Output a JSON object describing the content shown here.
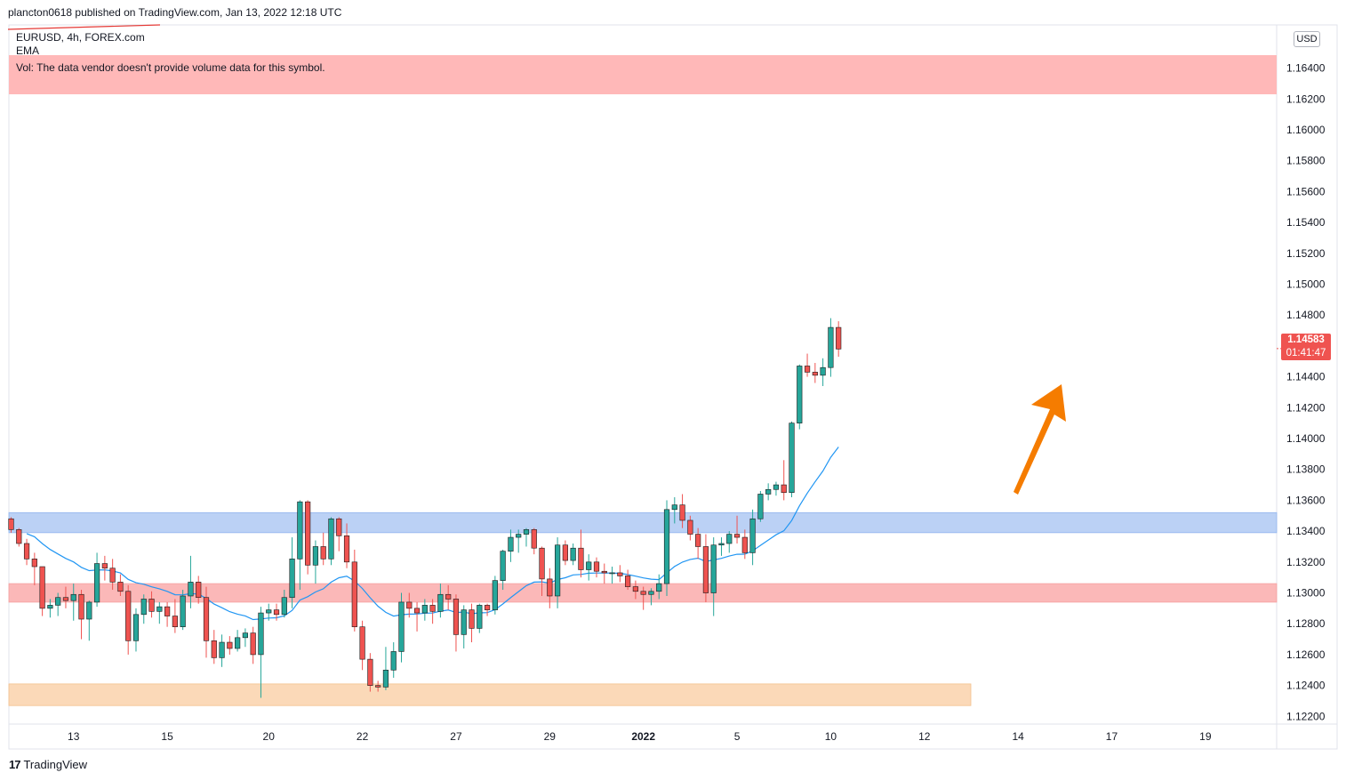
{
  "header": {
    "published": "plancton0618 published on TradingView.com, Jan 13, 2022 12:18 UTC"
  },
  "legend": {
    "symbol": "EURUSD, 4h, FOREX.com",
    "indicator": "EMA",
    "vol_note": "Vol: The data vendor doesn't provide volume data for this symbol."
  },
  "price_badge": {
    "price": "1.14583",
    "countdown": "01:41:47"
  },
  "currency_tag": "USD",
  "footer": {
    "logo_glyph": "17",
    "brand": "TradingView"
  },
  "colors": {
    "up": "#26a69a",
    "down": "#ef5350",
    "ema": "#2196f3",
    "arrow": "#f57c00",
    "blue_zone": "#bbd1f5",
    "red_zone": "#fbb8b8",
    "orange_zone": "#fbd9b8",
    "vol_band": "#ffb8b8"
  },
  "chart_data": {
    "type": "candlestick",
    "symbol": "EURUSD",
    "timeframe": "4h",
    "y_ticks": [
      "1.12200",
      "1.12400",
      "1.12600",
      "1.12800",
      "1.13000",
      "1.13200",
      "1.13400",
      "1.13600",
      "1.13800",
      "1.14000",
      "1.14200",
      "1.14400",
      "1.14800",
      "1.15000",
      "1.15200",
      "1.15400",
      "1.15600",
      "1.15800",
      "1.16000",
      "1.16200",
      "1.16400"
    ],
    "ylim": [
      1.1215,
      1.1668
    ],
    "x_ticks": [
      {
        "label": "13",
        "bar": 8
      },
      {
        "label": "15",
        "bar": 20
      },
      {
        "label": "20",
        "bar": 33
      },
      {
        "label": "22",
        "bar": 45
      },
      {
        "label": "27",
        "bar": 57
      },
      {
        "label": "29",
        "bar": 69
      },
      {
        "label": "2022",
        "bar": 81
      },
      {
        "label": "5",
        "bar": 93
      },
      {
        "label": "10",
        "bar": 105
      },
      {
        "label": "12",
        "bar": 117
      },
      {
        "label": "14",
        "bar": 129
      },
      {
        "label": "17",
        "bar": 141
      },
      {
        "label": "19",
        "bar": 153
      }
    ],
    "last_price": 1.14583,
    "zones": [
      {
        "name": "resistance",
        "from": 1.1339,
        "to": 1.1352
      },
      {
        "name": "support",
        "from": 1.1294,
        "to": 1.1306
      },
      {
        "name": "lower-support",
        "from": 1.1227,
        "to": 1.1241
      }
    ],
    "candles": [
      [
        1.1348,
        1.1349,
        1.1339,
        1.1341
      ],
      [
        1.1341,
        1.1342,
        1.133,
        1.1332
      ],
      [
        1.1332,
        1.1335,
        1.1318,
        1.1322
      ],
      [
        1.1322,
        1.1326,
        1.1305,
        1.1317
      ],
      [
        1.1317,
        1.1317,
        1.1285,
        1.129
      ],
      [
        1.129,
        1.1296,
        1.1284,
        1.1292
      ],
      [
        1.1292,
        1.13,
        1.1285,
        1.1297
      ],
      [
        1.1297,
        1.1304,
        1.129,
        1.1295
      ],
      [
        1.1295,
        1.1306,
        1.1282,
        1.1299
      ],
      [
        1.1299,
        1.1302,
        1.127,
        1.1283
      ],
      [
        1.1283,
        1.1295,
        1.1269,
        1.1294
      ],
      [
        1.1294,
        1.1326,
        1.1291,
        1.1319
      ],
      [
        1.1319,
        1.1324,
        1.1308,
        1.1316
      ],
      [
        1.1316,
        1.1322,
        1.1302,
        1.1307
      ],
      [
        1.1307,
        1.1312,
        1.1298,
        1.1301
      ],
      [
        1.1301,
        1.1305,
        1.126,
        1.1269
      ],
      [
        1.1269,
        1.129,
        1.1262,
        1.1286
      ],
      [
        1.1286,
        1.1299,
        1.128,
        1.1296
      ],
      [
        1.1296,
        1.1301,
        1.1284,
        1.1288
      ],
      [
        1.1288,
        1.1294,
        1.128,
        1.1291
      ],
      [
        1.1291,
        1.1294,
        1.1278,
        1.1285
      ],
      [
        1.1285,
        1.1296,
        1.1274,
        1.1278
      ],
      [
        1.1278,
        1.1302,
        1.1276,
        1.1298
      ],
      [
        1.1298,
        1.1324,
        1.129,
        1.1307
      ],
      [
        1.1307,
        1.1311,
        1.1293,
        1.1297
      ],
      [
        1.1297,
        1.1304,
        1.1258,
        1.1269
      ],
      [
        1.1269,
        1.1276,
        1.1254,
        1.1258
      ],
      [
        1.1258,
        1.1273,
        1.1252,
        1.1268
      ],
      [
        1.1268,
        1.1272,
        1.126,
        1.1264
      ],
      [
        1.1264,
        1.1276,
        1.1262,
        1.1271
      ],
      [
        1.1271,
        1.1277,
        1.1265,
        1.1274
      ],
      [
        1.1274,
        1.1278,
        1.1254,
        1.126
      ],
      [
        1.126,
        1.1291,
        1.1232,
        1.1287
      ],
      [
        1.1287,
        1.1293,
        1.1282,
        1.1289
      ],
      [
        1.1289,
        1.1293,
        1.1282,
        1.1286
      ],
      [
        1.1286,
        1.1302,
        1.1284,
        1.1297
      ],
      [
        1.1297,
        1.1336,
        1.129,
        1.1322
      ],
      [
        1.1322,
        1.136,
        1.1302,
        1.1359
      ],
      [
        1.1359,
        1.136,
        1.1312,
        1.1318
      ],
      [
        1.1318,
        1.1334,
        1.1306,
        1.133
      ],
      [
        1.133,
        1.1339,
        1.1318,
        1.1322
      ],
      [
        1.1322,
        1.1349,
        1.1318,
        1.1348
      ],
      [
        1.1348,
        1.1349,
        1.1327,
        1.1337
      ],
      [
        1.1337,
        1.1345,
        1.1316,
        1.132
      ],
      [
        1.132,
        1.1328,
        1.1275,
        1.1278
      ]
    ],
    "candles_2": [
      [
        1.1278,
        1.1282,
        1.125,
        1.1257
      ],
      [
        1.1257,
        1.1261,
        1.1236,
        1.124
      ],
      [
        1.124,
        1.1243,
        1.1236,
        1.1239
      ],
      [
        1.1239,
        1.1265,
        1.1237,
        1.125
      ],
      [
        1.125,
        1.1268,
        1.1245,
        1.1262
      ],
      [
        1.1262,
        1.13,
        1.1255,
        1.1294
      ],
      [
        1.1294,
        1.13,
        1.1284,
        1.129
      ],
      [
        1.129,
        1.1294,
        1.1275,
        1.1287
      ],
      [
        1.1287,
        1.1296,
        1.1282,
        1.1292
      ],
      [
        1.1292,
        1.1296,
        1.128,
        1.1288
      ],
      [
        1.1288,
        1.1306,
        1.1284,
        1.1299
      ],
      [
        1.1299,
        1.1305,
        1.1289,
        1.1296
      ],
      [
        1.1296,
        1.1299,
        1.1262,
        1.1273
      ],
      [
        1.1273,
        1.1292,
        1.1264,
        1.1289
      ],
      [
        1.1289,
        1.1293,
        1.1268,
        1.1277
      ],
      [
        1.1277,
        1.1293,
        1.1274,
        1.1292
      ],
      [
        1.1292,
        1.1293,
        1.1285,
        1.1289
      ],
      [
        1.1289,
        1.1311,
        1.1286,
        1.1308
      ],
      [
        1.1308,
        1.1328,
        1.1302,
        1.1327
      ],
      [
        1.1327,
        1.1341,
        1.132,
        1.1336
      ],
      [
        1.1336,
        1.1341,
        1.1326,
        1.1338
      ],
      [
        1.1338,
        1.1342,
        1.133,
        1.1341
      ],
      [
        1.1341,
        1.1342,
        1.1325,
        1.1329
      ],
      [
        1.1329,
        1.133,
        1.1298,
        1.1309
      ],
      [
        1.1309,
        1.1316,
        1.129,
        1.1298
      ],
      [
        1.1298,
        1.1336,
        1.129,
        1.1331
      ],
      [
        1.1331,
        1.1334,
        1.1318,
        1.1321
      ],
      [
        1.1321,
        1.1332,
        1.1318,
        1.1329
      ],
      [
        1.1329,
        1.1341,
        1.131,
        1.1315
      ],
      [
        1.1315,
        1.1325,
        1.1308,
        1.132
      ],
      [
        1.132,
        1.1323,
        1.131,
        1.1314
      ],
      [
        1.1314,
        1.1319,
        1.1306,
        1.1313
      ],
      [
        1.1313,
        1.1317,
        1.1306,
        1.1313
      ],
      [
        1.1313,
        1.1318,
        1.1307,
        1.1311
      ],
      [
        1.1311,
        1.1315,
        1.1302,
        1.1304
      ]
    ]
  }
}
